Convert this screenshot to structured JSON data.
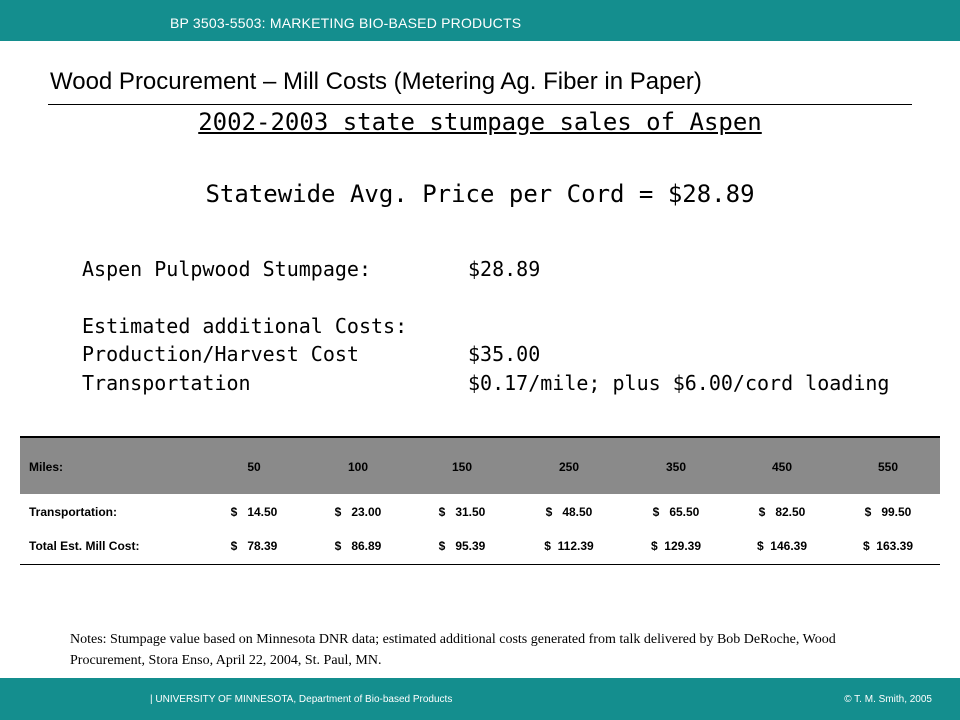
{
  "header": {
    "course": "BP 3503-5503: MARKETING BIO-BASED PRODUCTS"
  },
  "slide": {
    "title": "Wood Procurement – Mill Costs (Metering Ag. Fiber in Paper)",
    "subtitle": "2002-2003 state stumpage sales of Aspen",
    "avg_price": "Statewide Avg. Price per Cord = $28.89"
  },
  "costs": {
    "stumpage_label": "Aspen Pulpwood Stumpage:",
    "stumpage_value": "$28.89",
    "additional_label": "Estimated additional Costs:",
    "production_label": "Production/Harvest Cost",
    "production_value": "$35.00",
    "transport_label": "Transportation",
    "transport_value": "$0.17/mile; plus $6.00/cord loading"
  },
  "table": {
    "headers": [
      "Miles:",
      "50",
      "100",
      "150",
      "250",
      "350",
      "450",
      "550"
    ],
    "rows": [
      [
        "Transportation:",
        "$   14.50",
        "$   23.00",
        "$   31.50",
        "$   48.50",
        "$   65.50",
        "$   82.50",
        "$   99.50"
      ],
      [
        "Total Est. Mill Cost:",
        "$   78.39",
        "$   86.89",
        "$   95.39",
        "$  112.39",
        "$  129.39",
        "$  146.39",
        "$  163.39"
      ]
    ]
  },
  "notes": "Notes: Stumpage value based on Minnesota DNR data; estimated additional costs generated from talk delivered by Bob DeRoche, Wood Procurement, Stora Enso, April 22, 2004, St. Paul, MN.",
  "footer": {
    "left": "| UNIVERSITY OF MINNESOTA, Department of Bio-based Products",
    "right": "© T. M. Smith, 2005"
  },
  "colors": {
    "bar": "#148e8e",
    "table_header": "#8a8a8a"
  }
}
